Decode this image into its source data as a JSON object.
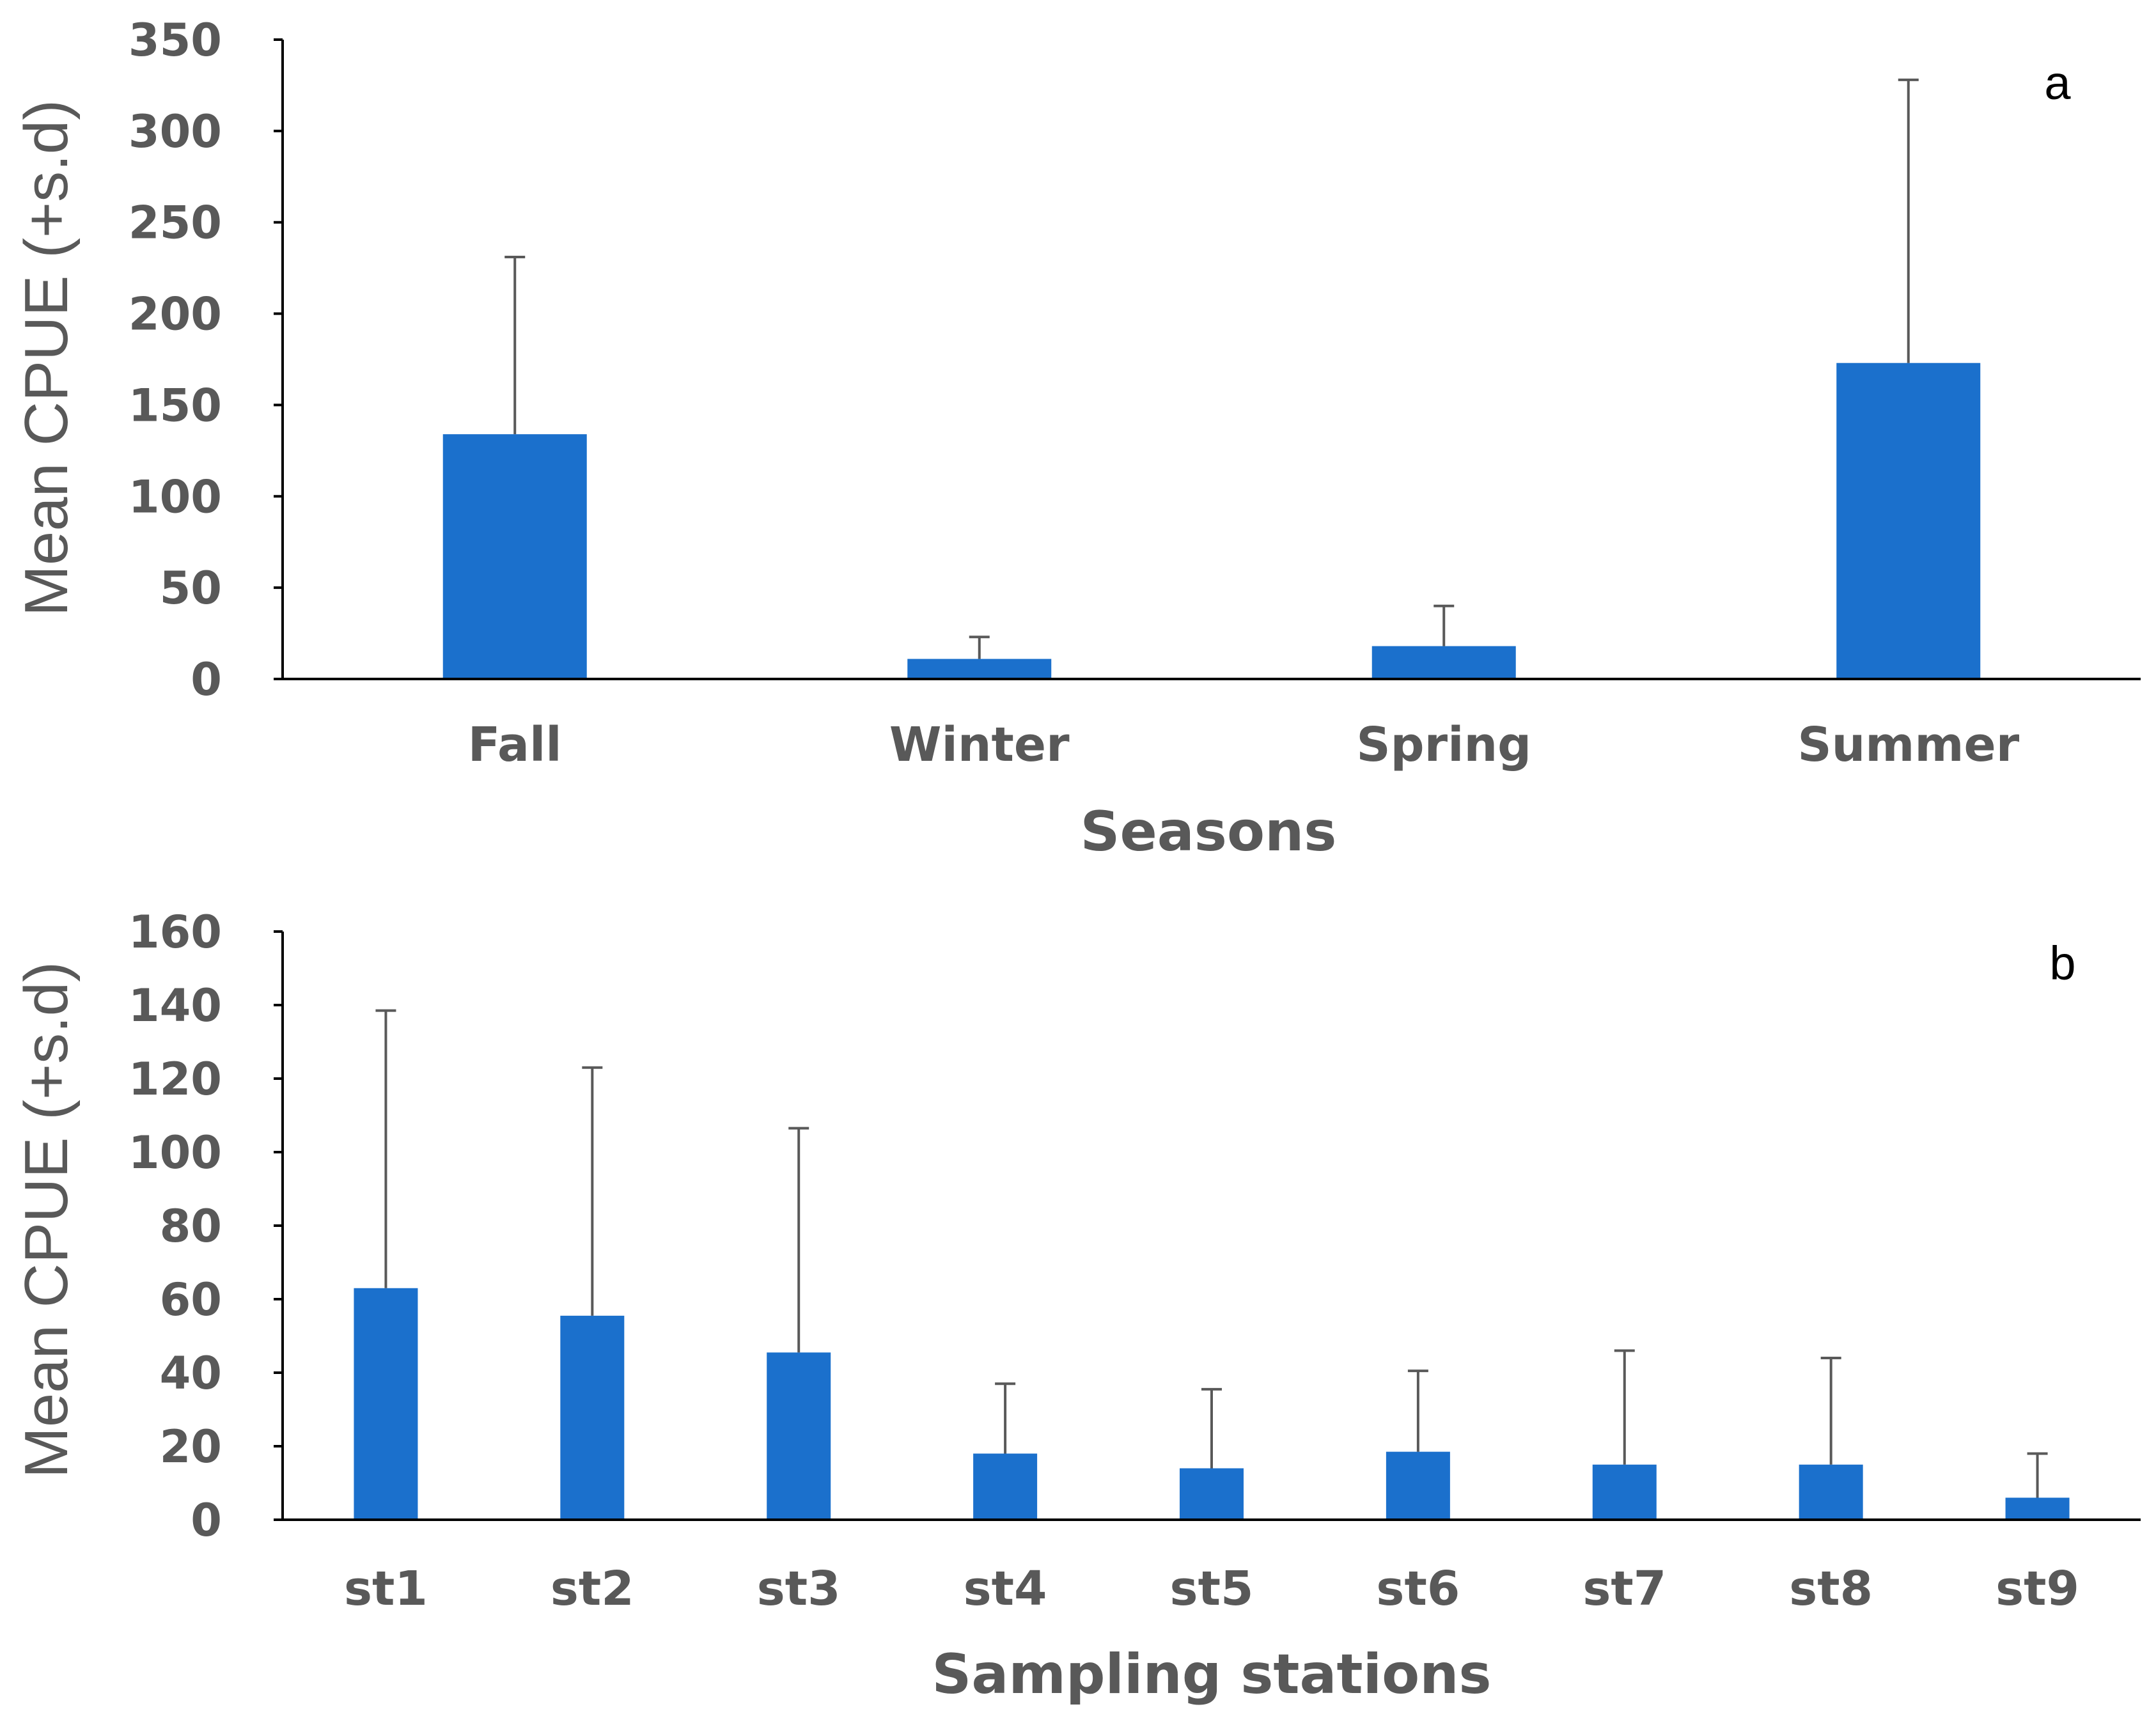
{
  "chart_data": [
    {
      "type": "bar",
      "panel_label": "a",
      "title": "",
      "xlabel": "Seasons",
      "ylabel": "Mean CPUE (+s.d)",
      "categories": [
        "Fall",
        "Winter",
        "Spring",
        "Summer"
      ],
      "values": [
        134,
        11,
        18,
        173
      ],
      "errors": [
        97,
        12,
        22,
        155
      ],
      "ylim": [
        0,
        350
      ],
      "yticks": [
        0,
        50,
        100,
        150,
        200,
        250,
        300,
        350
      ],
      "bar_color": "#1B70CC",
      "grid": false
    },
    {
      "type": "bar",
      "panel_label": "b",
      "title": "",
      "xlabel": "Sampling stations",
      "ylabel": "Mean CPUE (+s.d)",
      "categories": [
        "st1",
        "st2",
        "st3",
        "st4",
        "st5",
        "st6",
        "st7",
        "st8",
        "st9"
      ],
      "values": [
        63,
        55.5,
        45.5,
        18,
        14,
        18.5,
        15,
        15,
        6
      ],
      "errors": [
        75.5,
        67.5,
        61,
        19,
        21.5,
        22,
        31,
        29,
        12
      ],
      "ylim": [
        0,
        160
      ],
      "yticks": [
        0,
        20,
        40,
        60,
        80,
        100,
        120,
        140,
        160
      ],
      "bar_color": "#1B70CC",
      "grid": false
    }
  ]
}
